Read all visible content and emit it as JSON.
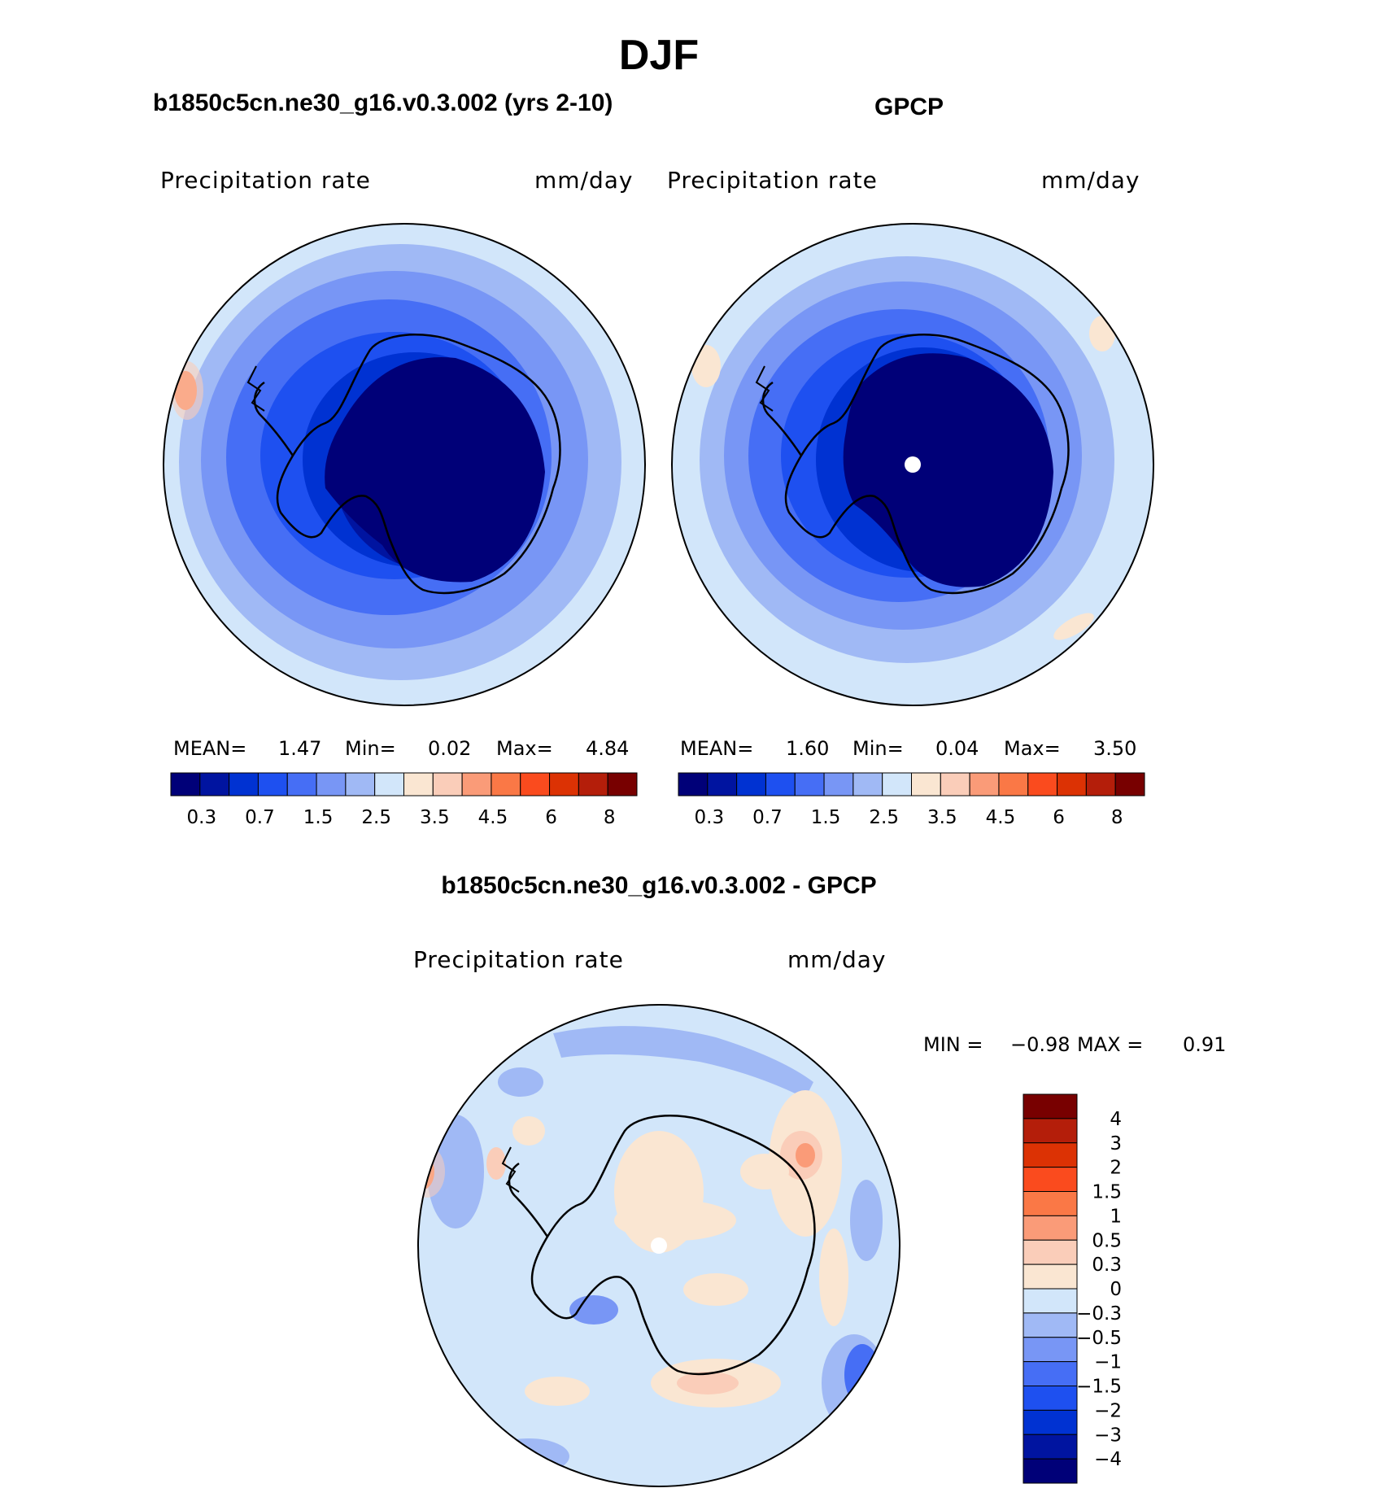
{
  "figure": {
    "season": "DJF",
    "model_title": "b1850c5cn.ne30_g16.v0.3.002 (yrs 2-10)",
    "obs_title": "GPCP",
    "diff_title": "b1850c5cn.ne30_g16.v0.3.002 - GPCP"
  },
  "panels": {
    "model": {
      "variable": "Precipitation  rate",
      "units": "mm/day",
      "mean_label": "MEAN=",
      "mean": "1.47",
      "min_label": "Min=",
      "min": "0.02",
      "max_label": "Max=",
      "max": "4.84"
    },
    "obs": {
      "variable": "Precipitation  rate",
      "units": "mm/day",
      "mean_label": "MEAN=",
      "mean": "1.60",
      "min_label": "Min=",
      "min": "0.04",
      "max_label": "Max=",
      "max": "3.50"
    },
    "diff": {
      "variable": "Precipitation  rate",
      "units": "mm/day",
      "min_label": "MIN =",
      "min": "−0.98",
      "max_label": "MAX =",
      "max": "0.91"
    }
  },
  "colorbars": {
    "abs": {
      "colors": [
        "#000078",
        "#0014a0",
        "#0032d2",
        "#1e50f0",
        "#466ef5",
        "#7896f5",
        "#a0b9f5",
        "#d2e6fa",
        "#fae6d2",
        "#facdb9",
        "#fa9b78",
        "#fa7846",
        "#fa4b1e",
        "#dc3204",
        "#b41e0a",
        "#780000"
      ],
      "ticks": [
        "0.3",
        "0.7",
        "1.5",
        "2.5",
        "3.5",
        "4.5",
        "6",
        "8"
      ]
    },
    "diff": {
      "colors": [
        "#000078",
        "#0014a0",
        "#0032d2",
        "#1e50f0",
        "#466ef5",
        "#7896f5",
        "#a0b9f5",
        "#d2e6fa",
        "#fae6d2",
        "#facdb9",
        "#fa9b78",
        "#fa7846",
        "#fa4b1e",
        "#dc3204",
        "#b41e0a",
        "#780000"
      ],
      "ticks": [
        "4",
        "3",
        "2",
        "1.5",
        "1",
        "0.5",
        "0.3",
        "0",
        "−0.3",
        "−0.5",
        "−1",
        "−1.5",
        "−2",
        "−3",
        "−4"
      ]
    }
  }
}
